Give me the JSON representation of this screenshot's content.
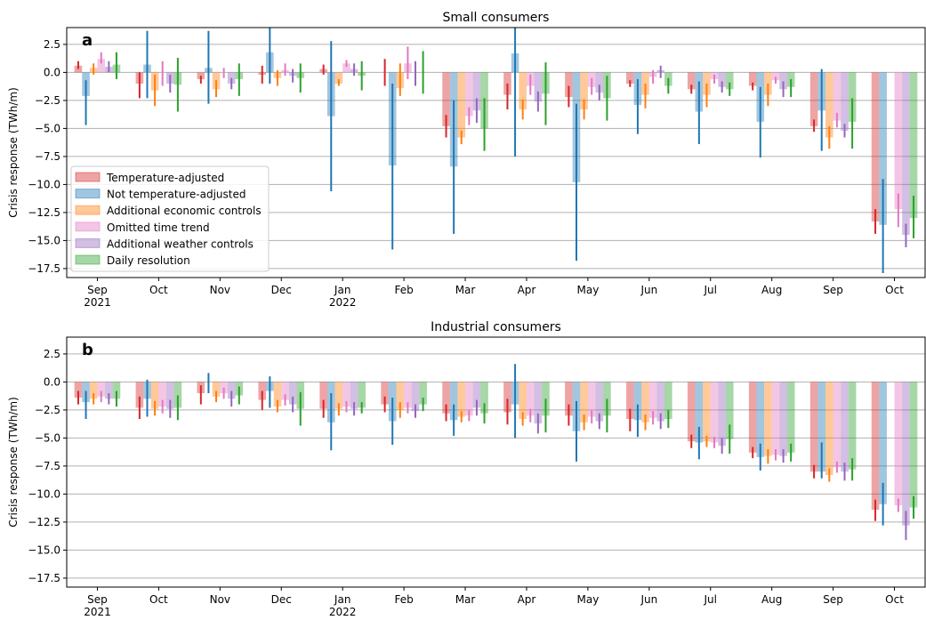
{
  "colors": {
    "grid": "#b0b0b0",
    "axis": "#000000",
    "legend_frame": "#cccccc"
  },
  "chart_data": [
    {
      "type": "bar",
      "panel_letter": "a",
      "title": "Small consumers",
      "ylabel": "Crisis response (TWh/m)",
      "ylim": [
        -18.3,
        4.0
      ],
      "yticks": [
        2.5,
        0.0,
        -2.5,
        -5.0,
        -7.5,
        -10.0,
        -12.5,
        -15.0,
        -17.5
      ],
      "ytick_labels": [
        "2.5",
        "0.0",
        "−2.5",
        "−5.0",
        "−7.5",
        "−10.0",
        "−12.5",
        "−15.0",
        "−17.5"
      ],
      "grid": "horizontal",
      "legend_placement": "lower-left",
      "categories": [
        "Sep\n2021",
        "Oct",
        "Nov",
        "Dec",
        "Jan\n2022",
        "Feb",
        "Mar",
        "Apr",
        "May",
        "Jun",
        "Jul",
        "Aug",
        "Sep",
        "Oct"
      ],
      "series": [
        {
          "name": "Temperature-adjusted",
          "color": "#d62728",
          "values": [
            0.6,
            -1.0,
            -0.6,
            -0.2,
            0.3,
            0.0,
            -4.8,
            -2.0,
            -2.2,
            -1.0,
            -1.5,
            -1.2,
            -4.8,
            -13.3
          ],
          "err_low": [
            0.3,
            -2.3,
            -1.0,
            -1.0,
            -0.2,
            -1.2,
            -5.8,
            -3.3,
            -3.1,
            -1.3,
            -1.9,
            -1.6,
            -5.3,
            -14.4
          ],
          "err_high": [
            1.0,
            0.0,
            -0.3,
            0.6,
            0.7,
            1.2,
            -3.8,
            -1.0,
            -1.2,
            -0.7,
            -1.1,
            -0.9,
            -4.2,
            -12.2
          ]
        },
        {
          "name": "Not temperature-adjusted",
          "color": "#1f77b4",
          "values": [
            -2.1,
            0.7,
            0.4,
            1.8,
            -3.9,
            -8.3,
            -8.4,
            1.7,
            -9.8,
            -2.9,
            -3.5,
            -4.4,
            -3.4,
            -13.6
          ],
          "err_low": [
            -4.7,
            -2.3,
            -2.8,
            -1.0,
            -10.6,
            -15.8,
            -14.4,
            -7.5,
            -16.8,
            -5.5,
            -6.4,
            -7.6,
            -7.0,
            -17.9
          ],
          "err_high": [
            -0.7,
            3.7,
            3.7,
            4.0,
            2.8,
            -1.0,
            -2.5,
            4.0,
            -2.8,
            -0.6,
            -0.8,
            -1.3,
            0.3,
            -9.5
          ]
        },
        {
          "name": "Additional economic controls",
          "color": "#ff7f0e",
          "values": [
            0.4,
            -1.6,
            -1.5,
            -0.5,
            -1.0,
            -1.4,
            -5.8,
            -3.3,
            -3.3,
            -2.0,
            -2.0,
            -2.0,
            -5.8,
            0.0
          ],
          "err_low": [
            -0.2,
            -3.0,
            -2.2,
            -1.2,
            -1.2,
            -2.1,
            -6.4,
            -4.2,
            -4.2,
            -3.2,
            -3.1,
            -3.0,
            -6.8,
            0.0
          ],
          "err_high": [
            0.8,
            -0.2,
            -0.7,
            0.2,
            -0.6,
            0.8,
            -5.2,
            -2.4,
            -2.4,
            -1.0,
            -1.0,
            -1.0,
            -4.8,
            0.0
          ]
        },
        {
          "name": "Omitted time trend",
          "color": "#e377c2",
          "values": [
            1.2,
            0.0,
            0.0,
            0.2,
            0.8,
            0.8,
            -3.9,
            -1.2,
            -1.3,
            -0.4,
            -0.6,
            -0.7,
            -4.3,
            -12.2
          ],
          "err_low": [
            0.8,
            -1.2,
            -0.5,
            -0.3,
            0.5,
            -0.6,
            -4.7,
            -2.0,
            -2.0,
            -1.0,
            -1.0,
            -1.0,
            -4.9,
            -13.8
          ],
          "err_high": [
            1.8,
            1.0,
            0.4,
            0.8,
            1.1,
            2.3,
            -3.1,
            -0.2,
            -0.5,
            0.2,
            -0.2,
            -0.4,
            -3.6,
            -10.8
          ]
        },
        {
          "name": "Additional weather controls",
          "color": "#9467bd",
          "values": [
            0.5,
            -1.0,
            -1.0,
            -0.3,
            0.3,
            0.0,
            -3.4,
            -2.6,
            -1.8,
            0.2,
            -1.3,
            -1.5,
            -5.2,
            -14.5
          ],
          "err_low": [
            0.0,
            -1.8,
            -1.5,
            -0.9,
            -0.3,
            -1.2,
            -4.5,
            -3.5,
            -2.5,
            -0.5,
            -1.8,
            -2.2,
            -5.8,
            -15.6
          ],
          "err_high": [
            1.0,
            -0.2,
            -0.5,
            0.3,
            0.8,
            1.0,
            -2.3,
            -1.7,
            -1.1,
            0.6,
            -0.8,
            -0.8,
            -4.6,
            -13.5
          ]
        },
        {
          "name": "Daily resolution",
          "color": "#2ca02c",
          "values": [
            0.7,
            -1.1,
            -0.6,
            -0.5,
            -0.3,
            0.0,
            -5.0,
            -1.9,
            -2.3,
            -1.2,
            -1.5,
            -1.3,
            -4.4,
            -13.0
          ],
          "err_low": [
            -0.6,
            -3.5,
            -2.1,
            -1.8,
            -1.6,
            -1.9,
            -7.0,
            -4.7,
            -4.3,
            -1.9,
            -2.1,
            -2.2,
            -6.8,
            -14.8
          ],
          "err_high": [
            1.8,
            1.3,
            0.8,
            0.8,
            1.0,
            1.9,
            -2.3,
            0.9,
            -0.3,
            -0.5,
            -0.9,
            -0.6,
            -2.3,
            -11.0
          ]
        }
      ]
    },
    {
      "type": "bar",
      "panel_letter": "b",
      "title": "Industrial consumers",
      "ylabel": "Crisis response (TWh/m)",
      "ylim": [
        -18.3,
        4.0
      ],
      "yticks": [
        2.5,
        0.0,
        -2.5,
        -5.0,
        -7.5,
        -10.0,
        -12.5,
        -15.0,
        -17.5
      ],
      "ytick_labels": [
        "2.5",
        "0.0",
        "−2.5",
        "−5.0",
        "−7.5",
        "−10.0",
        "−12.5",
        "−15.0",
        "−17.5"
      ],
      "grid": "horizontal",
      "categories": [
        "Sep\n2021",
        "Oct",
        "Nov",
        "Dec",
        "Jan\n2022",
        "Feb",
        "Mar",
        "Apr",
        "May",
        "Jun",
        "Jul",
        "Aug",
        "Sep",
        "Oct"
      ],
      "series": [
        {
          "name": "Temperature-adjusted",
          "color": "#d62728",
          "values": [
            -1.4,
            -2.3,
            -1.0,
            -1.6,
            -2.4,
            -2.0,
            -2.8,
            -2.7,
            -3.0,
            -3.3,
            -5.3,
            -6.3,
            -8.0,
            -11.4
          ],
          "err_low": [
            -2.0,
            -3.3,
            -2.0,
            -2.5,
            -3.2,
            -2.7,
            -3.5,
            -3.8,
            -3.9,
            -4.4,
            -5.9,
            -6.8,
            -8.6,
            -12.4
          ],
          "err_high": [
            -0.8,
            -1.3,
            -0.3,
            -0.8,
            -1.6,
            -1.3,
            -2.0,
            -1.5,
            -2.0,
            -2.4,
            -4.7,
            -5.8,
            -7.4,
            -10.5
          ]
        },
        {
          "name": "Not temperature-adjusted",
          "color": "#1f77b4",
          "values": [
            -1.8,
            -1.5,
            0.0,
            -0.8,
            -3.6,
            -3.5,
            -3.4,
            -2.0,
            -4.4,
            -3.4,
            -5.4,
            -6.7,
            -8.0,
            -10.9
          ],
          "err_low": [
            -3.3,
            -3.1,
            -1.0,
            -2.3,
            -6.1,
            -5.6,
            -4.8,
            -5.0,
            -7.1,
            -4.9,
            -6.9,
            -7.9,
            -8.6,
            -12.8
          ],
          "err_high": [
            -0.8,
            0.2,
            0.8,
            0.5,
            -1.0,
            -1.4,
            -2.0,
            1.6,
            -1.7,
            -2.0,
            -4.0,
            -5.5,
            -5.4,
            -9.0
          ]
        },
        {
          "name": "Additional economic controls",
          "color": "#ff7f0e",
          "values": [
            -1.5,
            -2.4,
            -1.3,
            -2.2,
            -2.4,
            -2.5,
            -3.1,
            -3.3,
            -3.6,
            -3.6,
            -5.3,
            -6.6,
            -8.3,
            0.0
          ],
          "err_low": [
            -2.0,
            -3.0,
            -1.8,
            -2.7,
            -3.0,
            -3.2,
            -3.6,
            -3.9,
            -4.3,
            -4.3,
            -5.8,
            -7.3,
            -8.9,
            0.0
          ],
          "err_high": [
            -1.0,
            -1.7,
            -0.8,
            -1.6,
            -1.9,
            -1.8,
            -2.6,
            -2.7,
            -2.9,
            -2.9,
            -4.8,
            -6.0,
            -7.7,
            0.0
          ]
        },
        {
          "name": "Omitted time trend",
          "color": "#e377c2",
          "values": [
            -1.3,
            -2.2,
            -1.0,
            -1.6,
            -2.2,
            -2.3,
            -3.0,
            -3.0,
            -3.1,
            -3.2,
            -5.4,
            -6.5,
            -7.6,
            -11.0
          ],
          "err_low": [
            -1.8,
            -2.8,
            -1.5,
            -2.1,
            -2.7,
            -2.8,
            -3.5,
            -3.6,
            -3.7,
            -3.8,
            -5.9,
            -7.0,
            -8.1,
            -11.6
          ],
          "err_high": [
            -0.8,
            -1.6,
            -0.5,
            -1.1,
            -1.7,
            -1.8,
            -2.5,
            -2.4,
            -2.5,
            -2.6,
            -4.9,
            -6.0,
            -7.1,
            -10.4
          ]
        },
        {
          "name": "Additional weather controls",
          "color": "#9467bd",
          "values": [
            -1.5,
            -2.4,
            -1.5,
            -2.0,
            -2.4,
            -2.6,
            -2.3,
            -3.7,
            -3.5,
            -3.5,
            -5.7,
            -6.6,
            -8.0,
            -12.8
          ],
          "err_low": [
            -2.0,
            -3.2,
            -2.2,
            -2.7,
            -3.0,
            -3.2,
            -3.0,
            -4.6,
            -4.2,
            -4.2,
            -6.4,
            -7.2,
            -8.8,
            -14.1
          ],
          "err_high": [
            -1.0,
            -1.6,
            -0.8,
            -1.3,
            -1.8,
            -2.0,
            -1.6,
            -2.8,
            -2.8,
            -2.8,
            -5.0,
            -6.0,
            -7.2,
            -11.5
          ]
        },
        {
          "name": "Daily resolution",
          "color": "#2ca02c",
          "values": [
            -1.5,
            -2.3,
            -1.2,
            -2.4,
            -2.3,
            -2.0,
            -2.8,
            -3.0,
            -3.0,
            -3.3,
            -5.1,
            -6.3,
            -7.8,
            -11.2
          ],
          "err_low": [
            -2.2,
            -3.4,
            -2.0,
            -3.9,
            -2.8,
            -2.6,
            -3.7,
            -4.5,
            -4.5,
            -4.1,
            -6.4,
            -7.1,
            -8.8,
            -12.2
          ],
          "err_high": [
            -0.8,
            -1.2,
            -0.4,
            -0.9,
            -1.8,
            -1.4,
            -1.9,
            -1.5,
            -1.5,
            -2.5,
            -3.8,
            -5.5,
            -6.8,
            -10.2
          ]
        }
      ]
    }
  ]
}
